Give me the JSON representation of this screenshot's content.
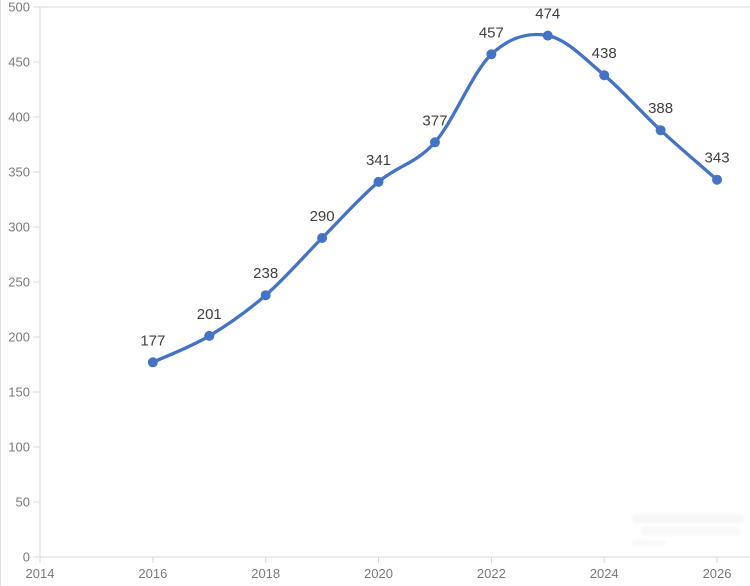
{
  "chart_data": {
    "type": "line",
    "title": "",
    "xlabel": "",
    "ylabel": "",
    "x": [
      2016,
      2017,
      2018,
      2019,
      2020,
      2021,
      2022,
      2023,
      2024,
      2025,
      2026
    ],
    "values": [
      177,
      201,
      238,
      290,
      341,
      377,
      457,
      474,
      438,
      388,
      343
    ],
    "data_labels": [
      "177",
      "201",
      "238",
      "290",
      "341",
      "377",
      "457",
      "474",
      "438",
      "388",
      "343"
    ],
    "x_tick_years": [
      2014,
      2016,
      2018,
      2020,
      2022,
      2024,
      2026
    ],
    "x_tick_labels": [
      "2014",
      "2016",
      "2018",
      "2020",
      "2022",
      "2024",
      "2026"
    ],
    "y_ticks": [
      0,
      50,
      100,
      150,
      200,
      250,
      300,
      350,
      400,
      450,
      500
    ],
    "y_tick_labels": [
      "0",
      "50",
      "100",
      "150",
      "200",
      "250",
      "300",
      "350",
      "400",
      "450",
      "500"
    ],
    "xlim": [
      2014,
      2026.6
    ],
    "ylim": [
      0,
      500
    ],
    "smooth": true,
    "markers": "circle",
    "data_label_position": "above",
    "legend": "none",
    "grid": "top-gridline-only",
    "colors": {
      "series": "#4472C4",
      "data_label": "#404040",
      "axis_text": "#7A7A7A",
      "axis_line": "#D9D9D9",
      "background": "#FFFFFF"
    }
  }
}
